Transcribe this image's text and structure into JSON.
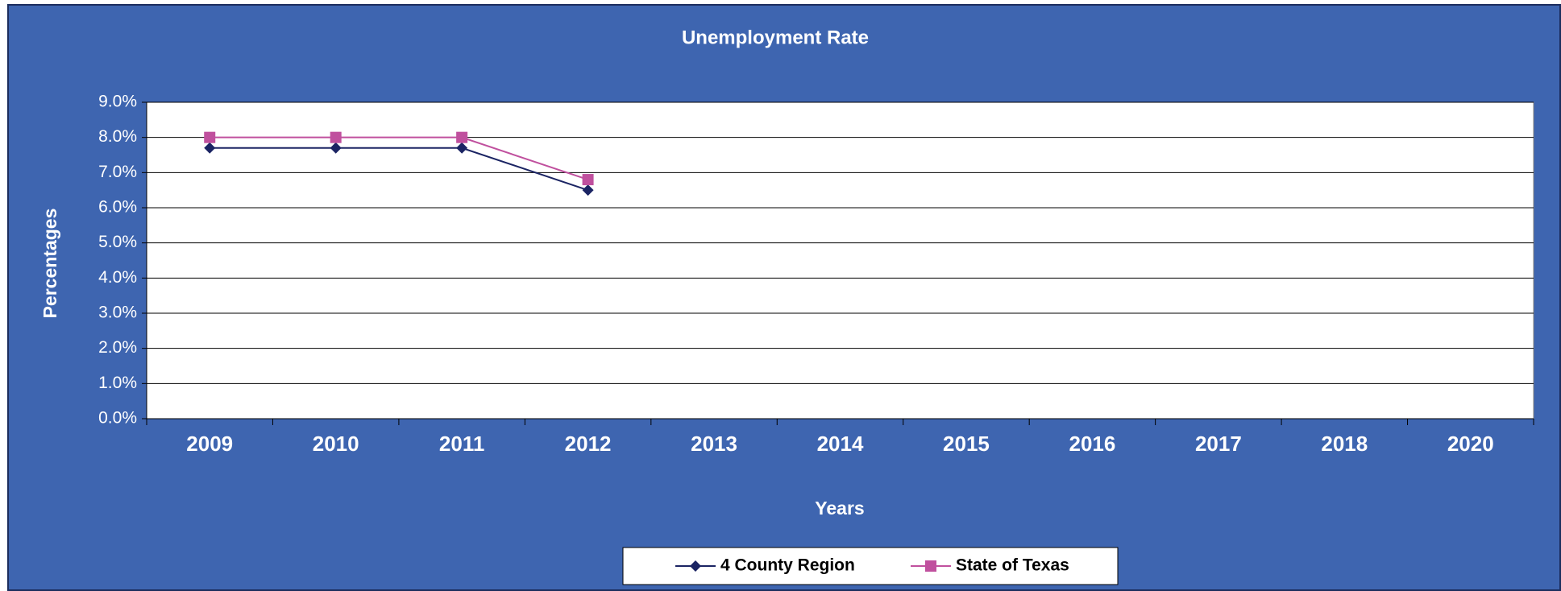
{
  "chart_data": {
    "type": "line",
    "title": "Unemployment Rate",
    "x_label": "Years",
    "y_label": "Percentages",
    "categories": [
      "2009",
      "2010",
      "2011",
      "2012",
      "2013",
      "2014",
      "2015",
      "2016",
      "2017",
      "2018",
      "2020"
    ],
    "series": [
      {
        "name": "4 County Region",
        "color": "#1b2463",
        "marker": "diamond",
        "values": [
          7.7,
          7.7,
          7.7,
          6.5,
          null,
          null,
          null,
          null,
          null,
          null,
          null
        ]
      },
      {
        "name": "State of Texas",
        "color": "#c0509e",
        "marker": "square",
        "values": [
          8.0,
          8.0,
          8.0,
          6.8,
          null,
          null,
          null,
          null,
          null,
          null,
          null
        ]
      }
    ],
    "ylim": [
      0,
      9
    ],
    "yticks": [
      {
        "value": 0,
        "label": "0.0%"
      },
      {
        "value": 1,
        "label": "1.0%"
      },
      {
        "value": 2,
        "label": "2.0%"
      },
      {
        "value": 3,
        "label": "3.0%"
      },
      {
        "value": 4,
        "label": "4.0%"
      },
      {
        "value": 5,
        "label": "5.0%"
      },
      {
        "value": 6,
        "label": "6.0%"
      },
      {
        "value": 7,
        "label": "7.0%"
      },
      {
        "value": 8,
        "label": "8.0%"
      },
      {
        "value": 9,
        "label": "9.0%"
      }
    ],
    "grid": true,
    "legend": "bottom"
  }
}
